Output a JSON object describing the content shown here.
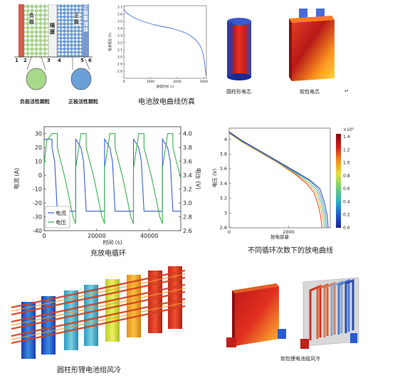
{
  "schematic": {
    "layer_neg": "负极",
    "layer_sep": "隔膜",
    "layer_pos": "正极",
    "layer_current_collector": "正极集流体",
    "markers": [
      "1",
      "2",
      "3",
      "4",
      "5",
      "6"
    ],
    "neg_particle_label": "负极活性颗粒",
    "pos_particle_label": "正极活性颗粒"
  },
  "cell_3d": {
    "cylinder_label": "圆柱形电芯",
    "pouch_label": "软包电芯",
    "return_mark": "↵"
  },
  "pack_cooling": {
    "cylinder_pack_caption": "圆柱形锂电池组风冷",
    "pouch_pack_caption": "软包锂电池组风冷"
  },
  "captions": {
    "discharge_sim": "电池放电曲线仿真",
    "charge_cycle": "充放电循环",
    "multi_cycle": "不同循环次数下的放电曲线"
  },
  "colors": {
    "neg_green": "#a8d88a",
    "pos_blue": "#6aa0d8",
    "collector_red": "#d8584a",
    "current_blue": "#3a5fcd",
    "voltage_green": "#3cb04c",
    "sim_line": "#4a6ee0"
  },
  "chart_data": [
    {
      "type": "line",
      "title": "",
      "xlabel": "放电时间 (s)",
      "ylabel": "电池电压 (V)",
      "xlim": [
        0,
        3100
      ],
      "ylim": [
        2.7,
        3.72
      ],
      "xticks": [
        0,
        1000,
        2000,
        3000
      ],
      "yticks": [
        2.8,
        2.9,
        3.0,
        3.1,
        3.2,
        3.3,
        3.4,
        3.5,
        3.6,
        3.7
      ],
      "series": [
        {
          "x": [
            0,
            100,
            300,
            500,
            800,
            1100,
            1400,
            1700,
            2000,
            2300,
            2500,
            2700,
            2850,
            2950,
            3020,
            3060,
            3080
          ],
          "values": [
            3.67,
            3.62,
            3.57,
            3.53,
            3.49,
            3.455,
            3.43,
            3.41,
            3.38,
            3.34,
            3.3,
            3.24,
            3.17,
            3.08,
            2.95,
            2.83,
            2.74
          ]
        }
      ]
    },
    {
      "type": "line",
      "title": "",
      "xlabel": "时间 (s)",
      "ylabel": "电流 (A)",
      "ylabel_right": "电压 (V)",
      "xlim": [
        0,
        52000
      ],
      "ylim": [
        -40,
        35
      ],
      "ylim_right": [
        2.6,
        4.1
      ],
      "xticks": [
        0,
        20000,
        40000
      ],
      "yticks": [
        -40,
        -30,
        -20,
        -10,
        0,
        10,
        20,
        30
      ],
      "yticks_right": [
        2.6,
        2.8,
        3.0,
        3.2,
        3.4,
        3.6,
        3.8,
        4.0
      ],
      "legend_position": "bottom-left",
      "series": [
        {
          "name": "电流",
          "x": [
            0,
            3000,
            3000,
            4000,
            5000,
            5000,
            12000,
            12000,
            12000,
            14000,
            15000,
            16000,
            16000,
            23000,
            23000,
            23000,
            25000,
            26000,
            27000,
            27000,
            34000,
            34000,
            34000,
            36000,
            37000,
            38000,
            38000,
            45000,
            45000,
            45000,
            47000,
            48000,
            49000,
            49000,
            52000
          ],
          "values": [
            26,
            26,
            20,
            10,
            -26,
            -26,
            -26,
            -26,
            26,
            20,
            10,
            -26,
            -26,
            -26,
            -26,
            26,
            20,
            10,
            -26,
            -26,
            -26,
            -26,
            26,
            20,
            10,
            -26,
            -26,
            -26,
            -26,
            26,
            20,
            10,
            -26,
            -26,
            -26
          ]
        },
        {
          "name": "电压",
          "axis": "right",
          "x": [
            0,
            1000,
            3000,
            3000,
            5000,
            5000,
            8000,
            11000,
            12000,
            12000,
            14000,
            16000,
            16000,
            19000,
            22000,
            23000,
            23000,
            25000,
            27000,
            27000,
            30000,
            33000,
            34000,
            34000,
            36000,
            38000,
            38000,
            41000,
            44000,
            45000,
            45000,
            47000,
            49000,
            49000,
            52000
          ],
          "values": [
            3.55,
            3.9,
            4.0,
            4.0,
            4.0,
            3.8,
            3.35,
            2.8,
            2.7,
            3.5,
            4.0,
            4.0,
            3.8,
            3.35,
            2.8,
            2.7,
            3.5,
            4.0,
            4.0,
            3.8,
            3.35,
            2.8,
            2.7,
            3.5,
            4.0,
            4.0,
            3.8,
            3.35,
            2.8,
            2.7,
            3.5,
            4.0,
            4.0,
            3.8,
            3.35
          ]
        }
      ]
    },
    {
      "type": "line",
      "title": "",
      "xlabel": "放电容量",
      "ylabel": "电压 (V)",
      "xlim": [
        0,
        3400
      ],
      "ylim": [
        2.8,
        4.15
      ],
      "xticks": [
        0,
        2000
      ],
      "yticks": [
        2.8,
        3.0,
        3.2,
        3.4,
        3.6,
        3.8,
        4.0
      ],
      "colorbar": {
        "multiplier": "×10³",
        "ticks": [
          0,
          0.2,
          0.4,
          0.6,
          0.8,
          1.0,
          1.2,
          1.4
        ]
      },
      "series": [
        {
          "x": [
            0,
            400,
            1000,
            1600,
            2200,
            2600,
            2850,
            3000,
            3080,
            3120
          ],
          "values": [
            4.08,
            3.97,
            3.83,
            3.69,
            3.53,
            3.4,
            3.28,
            3.1,
            2.95,
            2.8
          ]
        },
        {
          "x": [
            0,
            400,
            1000,
            1600,
            2200,
            2600,
            2900,
            3050,
            3140,
            3180
          ],
          "values": [
            4.08,
            3.97,
            3.83,
            3.69,
            3.54,
            3.42,
            3.3,
            3.12,
            2.96,
            2.8
          ]
        },
        {
          "x": [
            0,
            400,
            1000,
            1600,
            2200,
            2650,
            2950,
            3100,
            3190,
            3230
          ],
          "values": [
            4.09,
            3.98,
            3.84,
            3.7,
            3.55,
            3.43,
            3.31,
            3.13,
            2.97,
            2.8
          ]
        },
        {
          "x": [
            0,
            400,
            1000,
            1600,
            2200,
            2700,
            3000,
            3150,
            3240,
            3280
          ],
          "values": [
            4.09,
            3.98,
            3.84,
            3.7,
            3.56,
            3.44,
            3.32,
            3.14,
            2.97,
            2.8
          ]
        },
        {
          "x": [
            0,
            400,
            1000,
            1600,
            2200,
            2700,
            3050,
            3200,
            3290,
            3330
          ],
          "values": [
            4.1,
            3.99,
            3.85,
            3.71,
            3.57,
            3.45,
            3.33,
            3.15,
            2.98,
            2.8
          ]
        }
      ]
    }
  ]
}
